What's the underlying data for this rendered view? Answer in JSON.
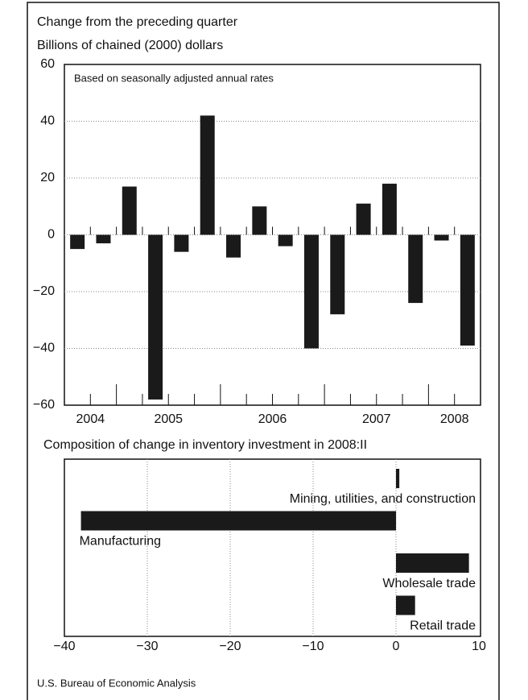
{
  "chart_data": [
    {
      "type": "bar",
      "title": "Change from the preceding quarter",
      "subtitle": "Billions of chained (2000) dollars",
      "annotation": "Based on seasonally adjusted annual rates",
      "categories": [
        "2004",
        null,
        "2005",
        null,
        null,
        null,
        "2006",
        null,
        null,
        null,
        "2007",
        null,
        null,
        null,
        "2008",
        null
      ],
      "values": [
        -5,
        -3,
        17,
        -58,
        -6,
        42,
        -8,
        10,
        -4,
        -40,
        -28,
        11,
        18,
        -24,
        -2,
        -39
      ],
      "color": "#1a1a1a",
      "ylim": [
        -60,
        60
      ],
      "yticks": [
        {
          "value": -60,
          "label": "−60"
        },
        {
          "value": -40,
          "label": "−40"
        },
        {
          "value": -20,
          "label": "−20"
        },
        0,
        20,
        40,
        60
      ],
      "grid": true
    },
    {
      "type": "hbar",
      "title": "Composition of change in inventory investment in 2008:II",
      "categories": [
        "Mining, utilities, and construction",
        "Manufacturing",
        "Wholesale trade",
        "Retail trade"
      ],
      "values": [
        0.4,
        -38,
        8.8,
        2.3
      ],
      "color": "#1a1a1a",
      "xlim": [
        -40,
        10
      ],
      "xticks": [
        {
          "value": -40,
          "label": "−40"
        },
        {
          "value": -30,
          "label": "−30"
        },
        {
          "value": -20,
          "label": "−20"
        },
        {
          "value": -10,
          "label": "−10"
        },
        0,
        10
      ],
      "grid": true
    }
  ],
  "source": "U.S. Bureau of Economic Analysis"
}
